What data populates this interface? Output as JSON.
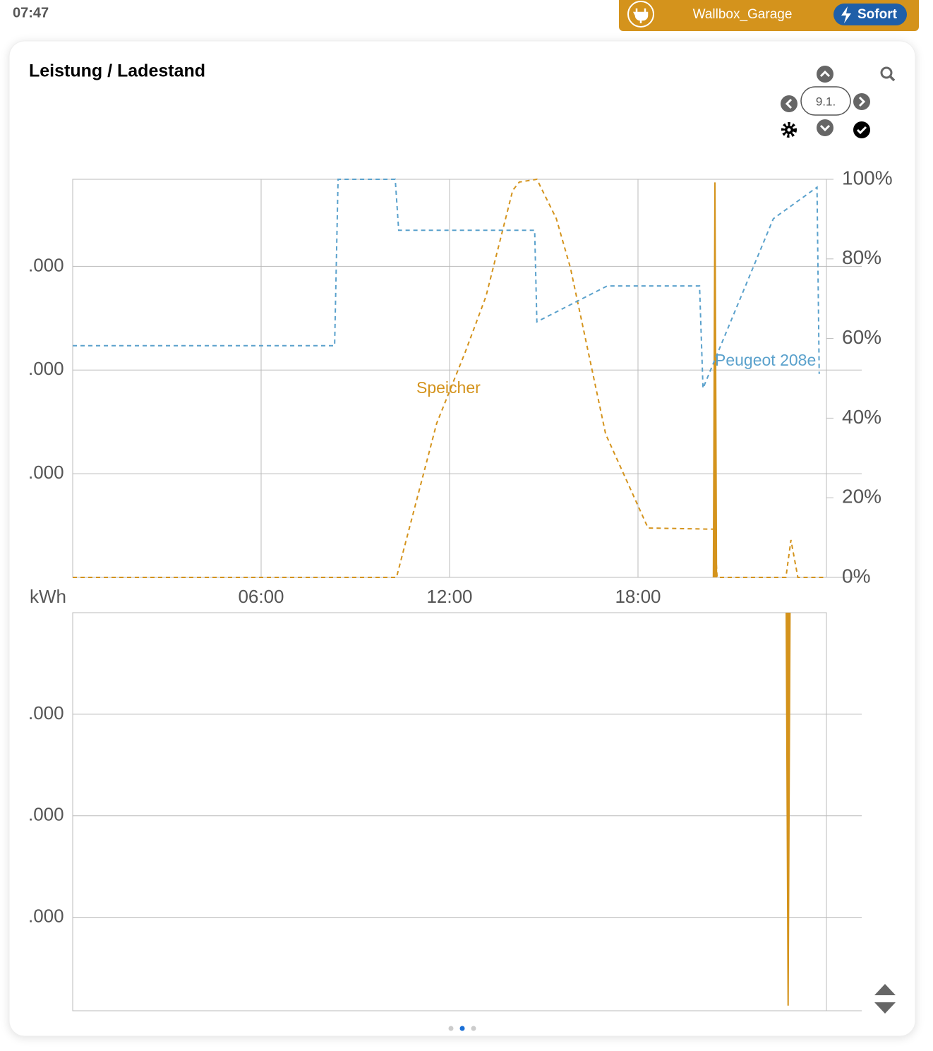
{
  "status_time": "07:47",
  "wallbox": {
    "name": "Wallbox_Garage",
    "mode": "Sofort"
  },
  "card": {
    "title": "Leistung / Ladestand",
    "date": "9.1."
  },
  "chart_data": [
    {
      "type": "line",
      "xlim": [
        0,
        24
      ],
      "xticks": [
        {
          "value": 6,
          "label": "06:00"
        },
        {
          "value": 12,
          "label": "12:00"
        },
        {
          "value": 18,
          "label": "18:00"
        }
      ],
      "ylim": [
        0,
        3840
      ],
      "yticks": [
        {
          "value": 1000,
          "label": ".000"
        },
        {
          "value": 2000,
          "label": ".000"
        },
        {
          "value": 3000,
          "label": ".000"
        }
      ],
      "y2lim": [
        0,
        100
      ],
      "y2ticks": [
        {
          "value": 0,
          "label": "0%"
        },
        {
          "value": 20,
          "label": "20%"
        },
        {
          "value": 40,
          "label": "40%"
        },
        {
          "value": 60,
          "label": "60%"
        },
        {
          "value": 80,
          "label": "80%"
        },
        {
          "value": 100,
          "label": "100%"
        }
      ],
      "grid": true,
      "series": [
        {
          "color": "#d4931c",
          "style": "solid",
          "x": [
            20.4,
            20.45,
            20.5
          ],
          "values": [
            0,
            3810,
            0
          ]
        },
        {
          "name": "Speicher",
          "axis": "y2",
          "color": "#d4931c",
          "style": "dashed",
          "x": [
            0,
            10.31,
            11.59,
            12.49,
            13.16,
            14.01,
            14.22,
            14.78,
            15.4,
            15.85,
            16.97,
            18.32,
            20.43,
            20.52,
            22.71,
            22.87,
            23.09,
            23.95
          ],
          "values": [
            0,
            0,
            38.7,
            56.4,
            70.6,
            97.2,
            99.3,
            100,
            90.1,
            77.7,
            36,
            12.4,
            12.1,
            0,
            0,
            9.4,
            0,
            0
          ]
        },
        {
          "name": "Peugeot 208e",
          "axis": "y2",
          "color": "#5aa1cc",
          "style": "dashed",
          "x": [
            0,
            8.34,
            8.45,
            10.27,
            10.38,
            14.71,
            14.78,
            17.02,
            19.96,
            20.07,
            22.31,
            23.7,
            23.77
          ],
          "values": [
            58.2,
            58.2,
            100,
            100,
            87.2,
            87.2,
            64.2,
            73.2,
            73.2,
            47.5,
            90.1,
            98,
            51.1
          ]
        }
      ]
    },
    {
      "type": "line",
      "y_label": "kWh",
      "xlim": [
        0,
        24
      ],
      "ylim": [
        -3920,
        0
      ],
      "yticks": [
        {
          "value": -1000,
          "label": ".000"
        },
        {
          "value": -2000,
          "label": ".000"
        },
        {
          "value": -3000,
          "label": ".000"
        }
      ],
      "grid": true,
      "series": [
        {
          "color": "#d4931c",
          "style": "solid",
          "x": [
            22.72,
            22.78,
            22.84
          ],
          "values": [
            0,
            -3870,
            0
          ]
        }
      ]
    }
  ]
}
